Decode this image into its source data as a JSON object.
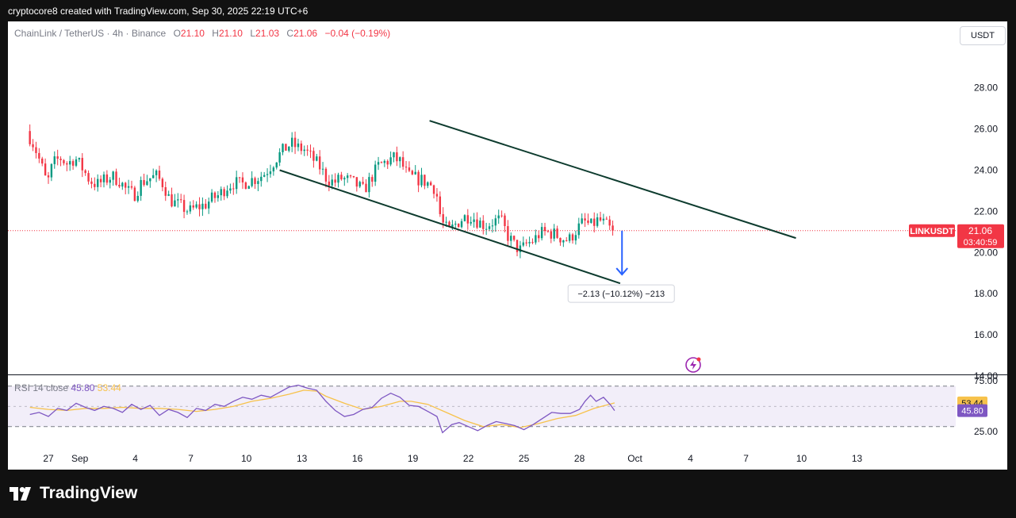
{
  "header": {
    "credit": "cryptocore8 created with TradingView.com, Sep 30, 2025 22:19 UTC+6"
  },
  "legend": {
    "symbol": "ChainLink / TetherUS · 4h · Binance",
    "open_label": "O",
    "open": "21.10",
    "high_label": "H",
    "high": "21.10",
    "low_label": "L",
    "low": "21.03",
    "close_label": "C",
    "close": "21.06",
    "change": "−0.04 (−0.19%)"
  },
  "currency_button": "USDT",
  "price_tag": {
    "symbol": "LINKUSDT",
    "price": "21.06",
    "countdown": "03:40:59"
  },
  "measure_label": "−2.13 (−10.12%) −213",
  "rsi_legend": {
    "name": "RSI 14 close",
    "rsi": "45.80",
    "ma": "53.44"
  },
  "rsi_tags": {
    "ma": "53.44",
    "rsi": "45.80"
  },
  "rsi_axis": [
    "75.00",
    "25.00"
  ],
  "footer": {
    "brand": "TradingView"
  },
  "colors": {
    "up": "#089981",
    "down": "#f23645",
    "channel": "#0d3b2e",
    "rsi": "#7e57c2",
    "rsi_ma": "#f7c24b",
    "arrow": "#2962ff"
  },
  "chart_data": {
    "type": "candlestick",
    "symbol": "LINKUSDT",
    "timeframe": "4h",
    "ylim": [
      13.8,
      30.2
    ],
    "y_ticks": [
      14,
      16,
      18,
      20,
      22,
      24,
      26,
      28
    ],
    "y_tick_labels": [
      "14.00",
      "16.00",
      "18.00",
      "20.00",
      "22.00",
      "24.00",
      "26.00",
      "28.00"
    ],
    "x_ticks": [
      {
        "t": 27,
        "label": "27"
      },
      {
        "t": 28.7,
        "label": "Sep"
      },
      {
        "t": 31.7,
        "label": "4"
      },
      {
        "t": 34.7,
        "label": "7"
      },
      {
        "t": 37.7,
        "label": "10"
      },
      {
        "t": 40.7,
        "label": "13"
      },
      {
        "t": 43.7,
        "label": "16"
      },
      {
        "t": 46.7,
        "label": "19"
      },
      {
        "t": 49.7,
        "label": "22"
      },
      {
        "t": 52.7,
        "label": "25"
      },
      {
        "t": 55.7,
        "label": "28"
      },
      {
        "t": 58.7,
        "label": "Oct"
      },
      {
        "t": 61.7,
        "label": "4"
      },
      {
        "t": 64.7,
        "label": "7"
      },
      {
        "t": 67.7,
        "label": "10"
      },
      {
        "t": 70.7,
        "label": "13"
      }
    ],
    "xlim": [
      26.0,
      70.7
    ],
    "price_path": [
      [
        26.0,
        25.9
      ],
      [
        26.4,
        25.2
      ],
      [
        26.8,
        24.2
      ],
      [
        27.1,
        23.3
      ],
      [
        27.4,
        24.3
      ],
      [
        27.8,
        24.6
      ],
      [
        28.2,
        24.3
      ],
      [
        28.6,
        24.6
      ],
      [
        29.0,
        24.1
      ],
      [
        29.4,
        23.5
      ],
      [
        29.8,
        23.3
      ],
      [
        30.2,
        23.5
      ],
      [
        30.6,
        23.7
      ],
      [
        31.0,
        23.5
      ],
      [
        31.4,
        23.0
      ],
      [
        31.8,
        22.8
      ],
      [
        32.2,
        23.4
      ],
      [
        32.6,
        23.6
      ],
      [
        33.0,
        23.7
      ],
      [
        33.4,
        23.3
      ],
      [
        33.7,
        22.6
      ],
      [
        34.0,
        22.4
      ],
      [
        34.4,
        22.2
      ],
      [
        34.8,
        22.0
      ],
      [
        35.2,
        22.2
      ],
      [
        35.6,
        22.3
      ],
      [
        36.0,
        22.6
      ],
      [
        36.4,
        22.8
      ],
      [
        36.8,
        23.2
      ],
      [
        37.2,
        23.4
      ],
      [
        37.6,
        23.3
      ],
      [
        38.0,
        23.5
      ],
      [
        38.4,
        23.6
      ],
      [
        38.8,
        23.8
      ],
      [
        39.1,
        24.1
      ],
      [
        39.5,
        24.6
      ],
      [
        39.9,
        25.0
      ],
      [
        40.3,
        25.3
      ],
      [
        40.6,
        25.1
      ],
      [
        41.0,
        25.0
      ],
      [
        41.4,
        24.6
      ],
      [
        41.8,
        24.2
      ],
      [
        42.2,
        23.6
      ],
      [
        42.6,
        23.4
      ],
      [
        43.0,
        23.6
      ],
      [
        43.4,
        23.5
      ],
      [
        43.8,
        23.3
      ],
      [
        44.2,
        23.0
      ],
      [
        44.6,
        23.6
      ],
      [
        45.0,
        24.2
      ],
      [
        45.4,
        24.4
      ],
      [
        45.8,
        24.6
      ],
      [
        46.2,
        24.4
      ],
      [
        46.6,
        23.7
      ],
      [
        47.0,
        23.6
      ],
      [
        47.4,
        23.5
      ],
      [
        47.8,
        23.3
      ],
      [
        48.1,
        23.1
      ],
      [
        48.4,
        21.5
      ],
      [
        48.8,
        21.0
      ],
      [
        49.2,
        21.4
      ],
      [
        49.6,
        21.7
      ],
      [
        50.0,
        21.8
      ],
      [
        50.4,
        21.5
      ],
      [
        50.8,
        21.3
      ],
      [
        51.2,
        21.5
      ],
      [
        51.6,
        21.6
      ],
      [
        52.0,
        20.8
      ],
      [
        52.4,
        20.3
      ],
      [
        52.7,
        20.1
      ],
      [
        53.0,
        20.4
      ],
      [
        53.4,
        20.6
      ],
      [
        53.7,
        20.9
      ],
      [
        54.1,
        21.0
      ],
      [
        54.5,
        20.9
      ],
      [
        54.9,
        20.7
      ],
      [
        55.3,
        20.6
      ],
      [
        55.7,
        21.1
      ],
      [
        56.1,
        21.5
      ],
      [
        56.5,
        21.3
      ],
      [
        56.9,
        21.6
      ],
      [
        57.2,
        21.4
      ],
      [
        57.6,
        21.06
      ]
    ],
    "channel_upper": {
      "from": [
        47.6,
        26.4
      ],
      "to": [
        67.4,
        20.7
      ]
    },
    "channel_lower": {
      "from": [
        39.5,
        24.0
      ],
      "to": [
        57.9,
        18.5
      ]
    },
    "measure_arrow": {
      "from": [
        58.0,
        21.06
      ],
      "to": [
        58.0,
        18.93
      ],
      "change": "−2.13",
      "percent": "−10.12%",
      "ticks": "−213"
    },
    "last_price": 21.06,
    "rsi": {
      "period": 14,
      "source": "close",
      "value": 45.8,
      "ma_value": 53.44,
      "ylim": [
        11,
        80
      ],
      "bands": [
        70,
        30
      ],
      "series": [
        [
          26.0,
          42
        ],
        [
          26.5,
          44
        ],
        [
          27.0,
          40
        ],
        [
          27.5,
          48
        ],
        [
          28.0,
          46
        ],
        [
          28.5,
          53
        ],
        [
          29.0,
          49
        ],
        [
          29.5,
          46
        ],
        [
          30.0,
          50
        ],
        [
          30.5,
          48
        ],
        [
          31.0,
          44
        ],
        [
          31.5,
          52
        ],
        [
          32.0,
          47
        ],
        [
          32.5,
          51
        ],
        [
          33.0,
          41
        ],
        [
          33.5,
          47
        ],
        [
          34.0,
          44
        ],
        [
          34.5,
          39
        ],
        [
          35.0,
          48
        ],
        [
          35.5,
          46
        ],
        [
          36.0,
          52
        ],
        [
          36.5,
          50
        ],
        [
          37.0,
          55
        ],
        [
          37.5,
          59
        ],
        [
          38.0,
          57
        ],
        [
          38.5,
          61
        ],
        [
          39.0,
          59
        ],
        [
          39.5,
          64
        ],
        [
          40.0,
          69
        ],
        [
          40.5,
          71
        ],
        [
          41.0,
          68
        ],
        [
          41.5,
          66
        ],
        [
          42.0,
          55
        ],
        [
          42.5,
          46
        ],
        [
          43.0,
          40
        ],
        [
          43.5,
          42
        ],
        [
          44.0,
          47
        ],
        [
          44.5,
          49
        ],
        [
          45.0,
          58
        ],
        [
          45.5,
          63
        ],
        [
          46.0,
          59
        ],
        [
          46.5,
          51
        ],
        [
          47.0,
          50
        ],
        [
          47.5,
          45
        ],
        [
          48.0,
          40
        ],
        [
          48.3,
          24
        ],
        [
          48.8,
          32
        ],
        [
          49.2,
          34
        ],
        [
          49.7,
          30
        ],
        [
          50.2,
          26
        ],
        [
          50.7,
          31
        ],
        [
          51.2,
          35
        ],
        [
          51.7,
          33
        ],
        [
          52.2,
          31
        ],
        [
          52.7,
          27
        ],
        [
          53.2,
          32
        ],
        [
          53.7,
          38
        ],
        [
          54.2,
          44
        ],
        [
          54.7,
          43
        ],
        [
          55.2,
          43
        ],
        [
          55.7,
          47
        ],
        [
          56.0,
          55
        ],
        [
          56.3,
          61
        ],
        [
          56.6,
          55
        ],
        [
          57.0,
          59
        ],
        [
          57.4,
          51
        ],
        [
          57.6,
          45.8
        ]
      ],
      "ma_series": [
        [
          26.0,
          49
        ],
        [
          27.0,
          47
        ],
        [
          28.0,
          46
        ],
        [
          29.0,
          48
        ],
        [
          30.0,
          48
        ],
        [
          31.0,
          49
        ],
        [
          32.0,
          48
        ],
        [
          33.0,
          48
        ],
        [
          34.0,
          47
        ],
        [
          35.0,
          45
        ],
        [
          36.0,
          47
        ],
        [
          37.0,
          50
        ],
        [
          38.0,
          55
        ],
        [
          39.0,
          58
        ],
        [
          40.0,
          62
        ],
        [
          40.8,
          66
        ],
        [
          41.5,
          65
        ],
        [
          42.0,
          60
        ],
        [
          43.0,
          53
        ],
        [
          44.0,
          47
        ],
        [
          45.0,
          50
        ],
        [
          46.0,
          55
        ],
        [
          46.6,
          55
        ],
        [
          47.5,
          52
        ],
        [
          48.5,
          44
        ],
        [
          49.5,
          36
        ],
        [
          50.5,
          30
        ],
        [
          51.5,
          32
        ],
        [
          52.5,
          29
        ],
        [
          53.5,
          33
        ],
        [
          54.5,
          38
        ],
        [
          55.5,
          41
        ],
        [
          56.5,
          48
        ],
        [
          57.6,
          53.44
        ]
      ]
    }
  }
}
